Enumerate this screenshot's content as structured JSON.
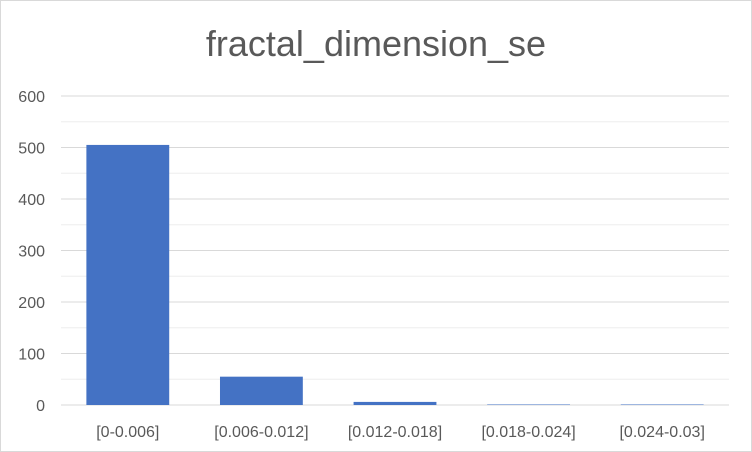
{
  "chart_data": {
    "type": "bar",
    "title": "fractal_dimension_se",
    "categories": [
      "[0-0.006]",
      "[0.006-0.012]",
      "[0.012-0.018]",
      "[0.018-0.024]",
      "[0.024-0.03]"
    ],
    "values": [
      505,
      55,
      6,
      1,
      1
    ],
    "xlabel": "",
    "ylabel": "",
    "ylim": [
      0,
      600
    ],
    "yticks": [
      0,
      100,
      200,
      300,
      400,
      500,
      600
    ],
    "minor_gridlines": true,
    "legend": "none",
    "bar_color": "#4472c4",
    "grid_color": "#d9d9d9"
  }
}
